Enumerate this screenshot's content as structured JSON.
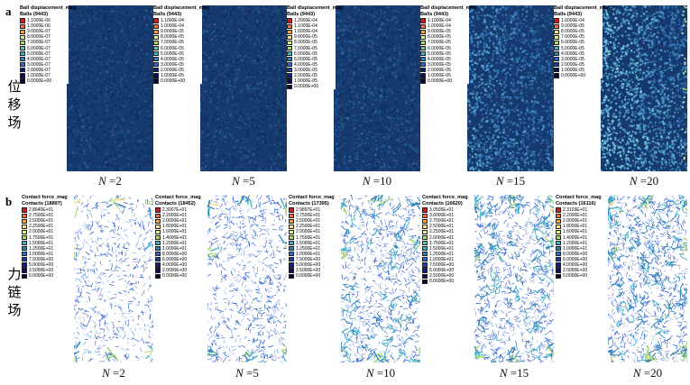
{
  "panels": [
    {
      "letter": "a",
      "row_label": [
        "位",
        "移",
        "场"
      ],
      "tiles": [
        {
          "n": "2",
          "title": "Ball displacement_mag",
          "sub": "Balls (9443)",
          "values": [
            "1.1000E-06",
            "1.0000E-06",
            "9.0000E-07",
            "8.0000E-07",
            "7.0000E-07",
            "6.0000E-07",
            "5.0000E-07",
            "4.0000E-07",
            "3.0000E-07",
            "2.0000E-07",
            "1.0000E-07",
            "0.0000E+00"
          ],
          "field": 0.05
        },
        {
          "n": "5",
          "title": "Ball displacement_mag",
          "sub": "Balls (9443)",
          "values": [
            "1.1000E-04",
            "1.0000E-04",
            "9.0000E-05",
            "8.0000E-05",
            "7.0000E-05",
            "6.0000E-05",
            "5.0000E-05",
            "4.0000E-05",
            "3.0000E-05",
            "2.0000E-05",
            "1.0000E-05",
            "0.0000E+00"
          ],
          "field": 0.08
        },
        {
          "n": "10",
          "title": "Ball displacement_mag",
          "sub": "Balls (9443)",
          "values": [
            "1.2000E-04",
            "1.1000E-04",
            "1.0000E-04",
            "9.0000E-05",
            "8.0000E-05",
            "7.0000E-05",
            "6.0000E-05",
            "5.0000E-05",
            "4.0000E-05",
            "3.0000E-05",
            "2.0000E-05",
            "1.0000E-05",
            "0.0000E+00"
          ],
          "field": 0.12
        },
        {
          "n": "15",
          "title": "Ball displacement_mag",
          "sub": "Balls (9443)",
          "values": [
            "1.1000E-04",
            "1.0000E-04",
            "9.0000E-05",
            "8.0000E-05",
            "7.0000E-05",
            "6.0000E-05",
            "5.0000E-05",
            "4.0000E-05",
            "3.0000E-05",
            "2.0000E-05",
            "1.0000E-05",
            "0.0000E+00"
          ],
          "field": 0.42
        },
        {
          "n": "20",
          "title": "Ball displacement_mag",
          "sub": "Balls (9443)",
          "values": [
            "1.0000E-04",
            "9.0000E-05",
            "8.0000E-05",
            "7.0000E-05",
            "6.0000E-05",
            "5.0000E-05",
            "4.0000E-05",
            "3.0000E-05",
            "2.0000E-05",
            "1.0000E-05",
            "0.0000E+00"
          ],
          "field": 0.6
        }
      ]
    },
    {
      "letter": "b",
      "row_label": [
        "力",
        "链",
        "场"
      ],
      "tiles": [
        {
          "n": "2",
          "title": "Contact force_mag",
          "sub": "Contacts (18897)",
          "values": [
            "2.8640E+01",
            "2.7500E+01",
            "2.5000E+01",
            "2.2500E+01",
            "2.0000E+01",
            "1.7500E+01",
            "1.5000E+01",
            "1.2500E+01",
            "1.0000E+01",
            "7.5000E+00",
            "5.0000E+00",
            "2.5000E+00",
            "0.0000E+00"
          ],
          "density": 0.55
        },
        {
          "n": "5",
          "title": "Contact force_mag",
          "sub": "Contacts (18452)",
          "values": [
            "2.3007E+01",
            "2.2000E+01",
            "2.0000E+01",
            "1.8000E+01",
            "1.6000E+01",
            "1.4000E+01",
            "1.2000E+01",
            "1.0000E+01",
            "8.0000E+00",
            "6.0000E+00",
            "4.0000E+00",
            "2.0000E+00",
            "0.0000E+00"
          ],
          "density": 0.7
        },
        {
          "n": "10",
          "title": "Contact force_mag",
          "sub": "Contacts (17395)",
          "values": [
            "2.9897E+01",
            "2.7500E+01",
            "2.5000E+01",
            "2.2500E+01",
            "2.0000E+01",
            "1.7500E+01",
            "1.5000E+01",
            "1.2500E+01",
            "1.0000E+01",
            "7.5000E+00",
            "5.0000E+00",
            "2.5000E+00",
            "0.0000E+00"
          ],
          "density": 0.75
        },
        {
          "n": "15",
          "title": "Contact force_mag",
          "sub": "Contacts (16620)",
          "values": [
            "3.0505E+01",
            "3.0000E+01",
            "2.7500E+01",
            "2.5000E+01",
            "2.2500E+01",
            "2.0000E+01",
            "1.7500E+01",
            "1.5000E+01",
            "1.2500E+01",
            "1.0000E+01",
            "7.5000E+00",
            "5.0000E+00",
            "2.5000E+00",
            "0.0000E+00"
          ],
          "density": 0.8
        },
        {
          "n": "20",
          "title": "Contact force_mag",
          "sub": "Contacts (16116)",
          "values": [
            "2.3103E+01",
            "2.2000E+01",
            "2.0000E+01",
            "1.8000E+01",
            "1.6000E+01",
            "1.4000E+01",
            "1.2000E+01",
            "1.0000E+01",
            "8.0000E+00",
            "6.0000E+00",
            "4.0000E+00",
            "2.0000E+00",
            "0.0000E+00"
          ],
          "density": 0.85
        }
      ]
    }
  ],
  "n_prefix": "N",
  "n_eq": " =",
  "colors": {
    "ramp": [
      "#d7191c",
      "#f46d43",
      "#f9a03f",
      "#fee08b",
      "#d9ef8b",
      "#a6d96a",
      "#66c2a5",
      "#3fb0c9",
      "#2b83ba",
      "#3366cc",
      "#1f3f99",
      "#141e78",
      "#0a0a55",
      "#050535"
    ],
    "ball_bg": "#163a6e",
    "force_line": "#2a5fd0"
  }
}
